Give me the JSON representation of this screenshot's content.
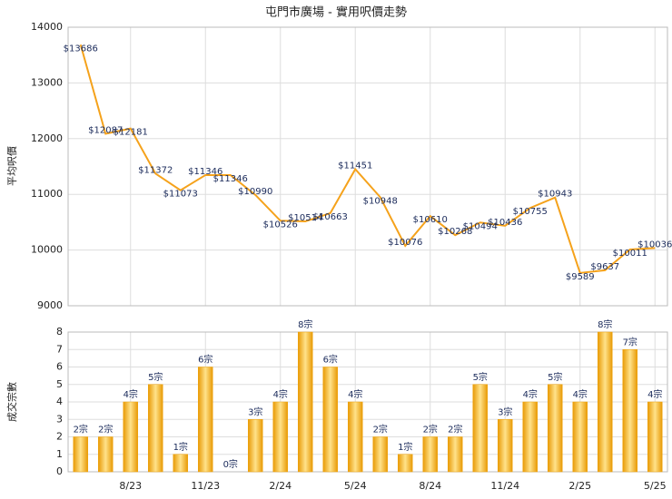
{
  "chart_data": [
    {
      "type": "line",
      "title": "屯門市廣場 - 實用呎價走勢",
      "y_label": "平均呎價",
      "categories": [
        null,
        null,
        "8/23",
        null,
        null,
        "11/23",
        null,
        null,
        "2/24",
        null,
        null,
        "5/24",
        null,
        null,
        "8/24",
        null,
        null,
        "11/24",
        null,
        null,
        "2/25",
        null,
        null,
        "5/25"
      ],
      "values": [
        13686,
        12087,
        12181,
        11372,
        11073,
        11346,
        11346,
        10990,
        10526,
        10514,
        10663,
        11451,
        10948,
        10076,
        10610,
        10268,
        10494,
        10436,
        10755,
        10943,
        9589,
        9637,
        10011,
        10036
      ],
      "value_labels": [
        "$13686",
        "$12087",
        "$12181",
        "$11372",
        "$11073",
        "$11346",
        "$11346",
        "$10990",
        "$10526",
        "$10514",
        "$10663",
        "$11451",
        "$10948",
        "$10076",
        "$10610",
        "$10268",
        "$10494",
        "$10436",
        "$10755",
        "$10943",
        "$9589",
        "$9637",
        "$10011",
        "$10036"
      ],
      "color": "#f5a21b",
      "ylim": [
        9000,
        14000
      ],
      "yticks": [
        9000,
        10000,
        11000,
        12000,
        13000,
        14000
      ],
      "grid": true
    },
    {
      "type": "bar",
      "y_label": "成交宗數",
      "categories": [
        null,
        null,
        "8/23",
        null,
        null,
        "11/23",
        null,
        null,
        "2/24",
        null,
        null,
        "5/24",
        null,
        null,
        "8/24",
        null,
        null,
        "11/24",
        null,
        null,
        "2/25",
        null,
        null,
        "5/25"
      ],
      "values": [
        2,
        2,
        4,
        5,
        1,
        6,
        0,
        3,
        4,
        8,
        6,
        4,
        2,
        1,
        2,
        2,
        5,
        3,
        4,
        5,
        4,
        8,
        7,
        4
      ],
      "value_labels": [
        "2宗",
        "2宗",
        "4宗",
        "5宗",
        "1宗",
        "6宗",
        "0宗",
        "3宗",
        "4宗",
        "8宗",
        "6宗",
        "4宗",
        "2宗",
        "1宗",
        "2宗",
        "2宗",
        "5宗",
        "3宗",
        "4宗",
        "5宗",
        "4宗",
        "8宗",
        "7宗",
        "4宗"
      ],
      "color": "#f0a30a",
      "ylim": [
        0,
        8
      ],
      "yticks": [
        0,
        1,
        2,
        3,
        4,
        5,
        6,
        7,
        8
      ],
      "grid": true
    }
  ]
}
